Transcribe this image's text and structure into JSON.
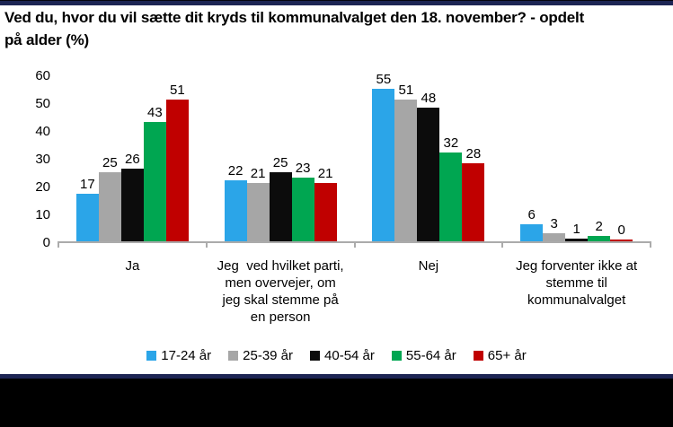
{
  "header": {
    "title_line1": "Ved du, hvor du vil sætte dit kryds til kommunalvalget den 18. november? - opdelt",
    "title_line2": "på alder (%)"
  },
  "chart_data": {
    "type": "bar",
    "title": "Ved du, hvor du vil sætte dit kryds til kommunalvalget den 18. november? - opdelt på alder (%)",
    "categories": [
      "Ja",
      "Jeg  ved hvilket parti,\nmen overvejer, om\njeg skal stemme på\nen person",
      "Nej",
      "Jeg forventer ikke at\nstemme til\nkommunalvalget"
    ],
    "series": [
      {
        "name": "17-24 år",
        "color": "#2BA5E8",
        "values": [
          17,
          22,
          55,
          6
        ]
      },
      {
        "name": "25-39 år",
        "color": "#A6A6A6",
        "values": [
          25,
          21,
          51,
          3
        ]
      },
      {
        "name": "40-54 år",
        "color": "#0C0C0C",
        "values": [
          26,
          25,
          48,
          1
        ]
      },
      {
        "name": "55-64 år",
        "color": "#00A651",
        "values": [
          43,
          23,
          32,
          2
        ]
      },
      {
        "name": "65+ år",
        "color": "#C00000",
        "values": [
          51,
          21,
          28,
          0
        ]
      }
    ],
    "xlabel": "",
    "ylabel": "",
    "ylim": [
      0,
      60
    ],
    "yticks": [
      0,
      10,
      20,
      30,
      40,
      50,
      60
    ],
    "grid": false,
    "legend_position": "bottom",
    "data_labels": true,
    "axis_color": "#ABABAB"
  },
  "frame": {
    "top_band_color": "#1D2554",
    "bottom_band_color": "#1D2554",
    "bottom_black_color": "#000000"
  }
}
